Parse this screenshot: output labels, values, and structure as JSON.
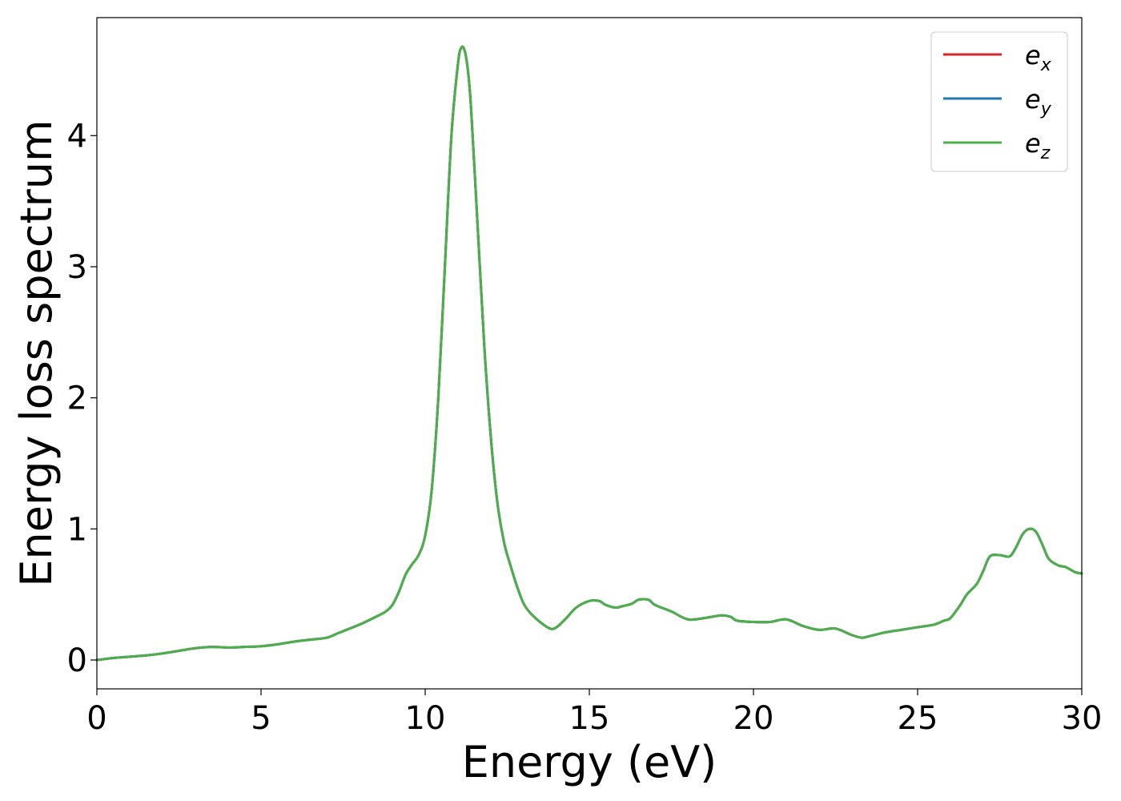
{
  "chart_data": {
    "type": "line",
    "title": "",
    "xlabel": "Energy (eV)",
    "ylabel": "Energy loss spectrum",
    "xlim": [
      0,
      30
    ],
    "ylim": [
      -0.22,
      4.9
    ],
    "xticks": [
      0,
      5,
      10,
      15,
      20,
      25,
      30
    ],
    "xtick_labels": [
      "0",
      "5",
      "10",
      "15",
      "20",
      "25",
      "30"
    ],
    "yticks": [
      0,
      1,
      2,
      3,
      4
    ],
    "ytick_labels": [
      "0",
      "1",
      "2",
      "3",
      "4"
    ],
    "grid": false,
    "legend": {
      "placement": "top-right",
      "entries": [
        {
          "base": "e",
          "sub": "x",
          "color": "#d62728"
        },
        {
          "base": "e",
          "sub": "y",
          "color": "#1f77b4"
        },
        {
          "base": "e",
          "sub": "z",
          "color": "#4daf4a"
        }
      ]
    },
    "x": [
      0,
      0.5,
      1.0,
      1.5,
      2.0,
      2.5,
      3.0,
      3.5,
      4.0,
      4.5,
      5.0,
      5.5,
      6.0,
      6.5,
      7.0,
      7.3,
      7.5,
      8.0,
      8.5,
      8.8,
      9.0,
      9.2,
      9.4,
      9.6,
      9.8,
      10.0,
      10.2,
      10.4,
      10.6,
      10.8,
      11.0,
      11.1,
      11.2,
      11.3,
      11.4,
      11.6,
      11.8,
      12.0,
      12.2,
      12.4,
      12.6,
      12.8,
      13.0,
      13.2,
      13.5,
      13.8,
      14.0,
      14.3,
      14.6,
      15.0,
      15.3,
      15.5,
      15.8,
      16.0,
      16.3,
      16.5,
      16.8,
      17.0,
      17.5,
      18.0,
      18.5,
      19.0,
      19.3,
      19.5,
      20.0,
      20.5,
      21.0,
      21.5,
      22.0,
      22.5,
      23.0,
      23.3,
      23.5,
      24.0,
      24.5,
      25.0,
      25.5,
      25.8,
      26.0,
      26.3,
      26.5,
      26.8,
      27.0,
      27.2,
      27.5,
      27.8,
      28.0,
      28.2,
      28.4,
      28.6,
      28.8,
      29.0,
      29.3,
      29.5,
      29.8,
      30.0
    ],
    "series": [
      {
        "name": "e_x",
        "color": "#d62728",
        "values": [
          0.0,
          0.015,
          0.025,
          0.035,
          0.05,
          0.07,
          0.09,
          0.1,
          0.095,
          0.1,
          0.105,
          0.12,
          0.14,
          0.155,
          0.17,
          0.2,
          0.22,
          0.27,
          0.33,
          0.37,
          0.42,
          0.52,
          0.65,
          0.73,
          0.8,
          0.95,
          1.3,
          2.0,
          3.0,
          4.0,
          4.55,
          4.67,
          4.65,
          4.5,
          4.2,
          3.3,
          2.4,
          1.7,
          1.2,
          0.9,
          0.72,
          0.56,
          0.43,
          0.36,
          0.29,
          0.24,
          0.25,
          0.32,
          0.4,
          0.45,
          0.45,
          0.42,
          0.4,
          0.41,
          0.43,
          0.46,
          0.46,
          0.42,
          0.37,
          0.31,
          0.32,
          0.34,
          0.33,
          0.3,
          0.29,
          0.29,
          0.31,
          0.26,
          0.23,
          0.24,
          0.19,
          0.17,
          0.18,
          0.21,
          0.23,
          0.25,
          0.27,
          0.3,
          0.32,
          0.42,
          0.5,
          0.58,
          0.68,
          0.79,
          0.8,
          0.79,
          0.86,
          0.96,
          1.0,
          0.98,
          0.88,
          0.77,
          0.72,
          0.71,
          0.67,
          0.66
        ]
      },
      {
        "name": "e_y",
        "color": "#1f77b4",
        "values": [
          0.0,
          0.015,
          0.025,
          0.035,
          0.05,
          0.07,
          0.09,
          0.1,
          0.095,
          0.1,
          0.105,
          0.12,
          0.14,
          0.155,
          0.17,
          0.2,
          0.22,
          0.27,
          0.33,
          0.37,
          0.42,
          0.52,
          0.65,
          0.73,
          0.8,
          0.95,
          1.3,
          2.0,
          3.0,
          4.0,
          4.55,
          4.67,
          4.65,
          4.5,
          4.2,
          3.3,
          2.4,
          1.7,
          1.2,
          0.9,
          0.72,
          0.56,
          0.43,
          0.36,
          0.29,
          0.24,
          0.25,
          0.32,
          0.4,
          0.45,
          0.45,
          0.42,
          0.4,
          0.41,
          0.43,
          0.46,
          0.46,
          0.42,
          0.37,
          0.31,
          0.32,
          0.34,
          0.33,
          0.3,
          0.29,
          0.29,
          0.31,
          0.26,
          0.23,
          0.24,
          0.19,
          0.17,
          0.18,
          0.21,
          0.23,
          0.25,
          0.27,
          0.3,
          0.32,
          0.42,
          0.5,
          0.58,
          0.68,
          0.79,
          0.8,
          0.79,
          0.86,
          0.96,
          1.0,
          0.98,
          0.88,
          0.77,
          0.72,
          0.71,
          0.67,
          0.66
        ]
      },
      {
        "name": "e_z",
        "color": "#4daf4a",
        "values": [
          0.0,
          0.015,
          0.025,
          0.035,
          0.05,
          0.07,
          0.09,
          0.1,
          0.095,
          0.1,
          0.105,
          0.12,
          0.14,
          0.155,
          0.17,
          0.2,
          0.22,
          0.27,
          0.33,
          0.37,
          0.42,
          0.52,
          0.65,
          0.73,
          0.8,
          0.95,
          1.3,
          2.0,
          3.0,
          4.0,
          4.55,
          4.67,
          4.65,
          4.5,
          4.2,
          3.3,
          2.4,
          1.7,
          1.2,
          0.9,
          0.72,
          0.56,
          0.43,
          0.36,
          0.29,
          0.24,
          0.25,
          0.32,
          0.4,
          0.45,
          0.45,
          0.42,
          0.4,
          0.41,
          0.43,
          0.46,
          0.46,
          0.42,
          0.37,
          0.31,
          0.32,
          0.34,
          0.33,
          0.3,
          0.29,
          0.29,
          0.31,
          0.26,
          0.23,
          0.24,
          0.19,
          0.17,
          0.18,
          0.21,
          0.23,
          0.25,
          0.27,
          0.3,
          0.32,
          0.42,
          0.5,
          0.58,
          0.68,
          0.79,
          0.8,
          0.79,
          0.86,
          0.96,
          1.0,
          0.98,
          0.88,
          0.77,
          0.72,
          0.71,
          0.67,
          0.66
        ]
      }
    ]
  }
}
